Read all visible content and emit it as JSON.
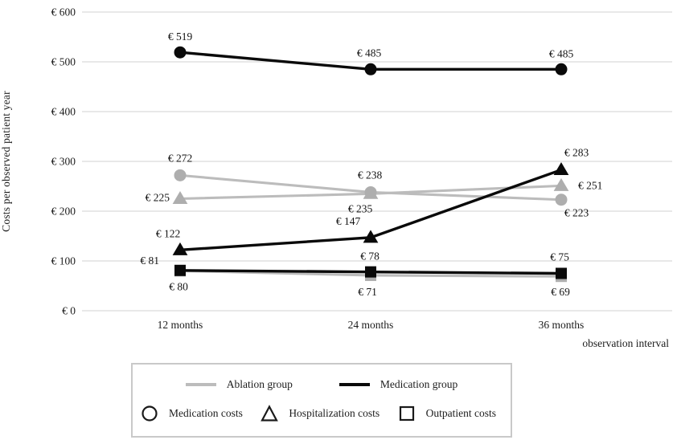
{
  "chart_data": {
    "type": "line",
    "title": "",
    "ylabel": "Costs per observed patient year",
    "xlabel": "observation interval",
    "categories": [
      "12 months",
      "24 months",
      "36 months"
    ],
    "ylim": [
      0,
      600
    ],
    "ytick_interval": 100,
    "ytick_labels": [
      "€ 0",
      "€ 100",
      "€ 200",
      "€ 300",
      "€ 400",
      "€ 500",
      "€ 600"
    ],
    "grid": "horizontal-only",
    "gridline_color": "#d9d9d9",
    "series": [
      {
        "name": "ablation-medication-costs",
        "group": "Ablation group",
        "cost_type": "Medication costs",
        "marker": "circle",
        "color": "#bcbcbc",
        "marker_color": "#aeaeae",
        "values": [
          272,
          238,
          223
        ],
        "point_labels": [
          {
            "text": "€ 272",
            "anchor": "middle",
            "dx": 0,
            "dy": -17
          },
          {
            "text": "€ 238",
            "anchor": "middle",
            "dx": -1,
            "dy": -17
          },
          {
            "text": "€ 223",
            "anchor": "middle",
            "dx": 19,
            "dy": 21
          }
        ]
      },
      {
        "name": "ablation-hospitalization-costs",
        "group": "Ablation group",
        "cost_type": "Hospitalization costs",
        "marker": "triangle",
        "color": "#bcbcbc",
        "marker_color": "#aeaeae",
        "values": [
          225,
          235,
          251
        ],
        "point_labels": [
          {
            "text": "€ 225",
            "anchor": "end",
            "dx": -13,
            "dy": 3
          },
          {
            "text": "€ 235",
            "anchor": "middle",
            "dx": -13,
            "dy": 23
          },
          {
            "text": "€ 251",
            "anchor": "start",
            "dx": 21,
            "dy": 4
          }
        ]
      },
      {
        "name": "ablation-outpatient-costs",
        "group": "Ablation group",
        "cost_type": "Outpatient costs",
        "marker": "square",
        "color": "#bcbcbc",
        "marker_color": "#aeaeae",
        "values": [
          80,
          71,
          69
        ],
        "point_labels": [
          {
            "text": "€ 80",
            "anchor": "middle",
            "dx": -2,
            "dy": 24
          },
          {
            "text": "€ 71",
            "anchor": "middle",
            "dx": -4,
            "dy": 25
          },
          {
            "text": "€ 69",
            "anchor": "middle",
            "dx": -1,
            "dy": 24
          }
        ]
      },
      {
        "name": "medication-medication-costs",
        "group": "Medication group",
        "cost_type": "Medication costs",
        "marker": "circle",
        "color": "#0a0a0a",
        "marker_color": "#0a0a0a",
        "values": [
          519,
          485,
          485
        ],
        "point_labels": [
          {
            "text": "€ 519",
            "anchor": "middle",
            "dx": 0,
            "dy": -15
          },
          {
            "text": "€ 485",
            "anchor": "middle",
            "dx": -2,
            "dy": -16
          },
          {
            "text": "€ 485",
            "anchor": "middle",
            "dx": 0,
            "dy": -15
          }
        ]
      },
      {
        "name": "medication-hospitalization-costs",
        "group": "Medication group",
        "cost_type": "Hospitalization costs",
        "marker": "triangle",
        "color": "#0a0a0a",
        "marker_color": "#0a0a0a",
        "values": [
          122,
          147,
          283
        ],
        "point_labels": [
          {
            "text": "€ 122",
            "anchor": "middle",
            "dx": -15,
            "dy": -16
          },
          {
            "text": "€ 147",
            "anchor": "middle",
            "dx": -28,
            "dy": -16
          },
          {
            "text": "€ 283",
            "anchor": "middle",
            "dx": 19,
            "dy": -17
          }
        ]
      },
      {
        "name": "medication-outpatient-costs",
        "group": "Medication group",
        "cost_type": "Outpatient costs",
        "marker": "square",
        "color": "#0a0a0a",
        "marker_color": "#0a0a0a",
        "values": [
          81,
          78,
          75
        ],
        "point_labels": [
          {
            "text": "€ 81",
            "anchor": "end",
            "dx": -26,
            "dy": -8
          },
          {
            "text": "€ 78",
            "anchor": "middle",
            "dx": -1,
            "dy": -15
          },
          {
            "text": "€ 75",
            "anchor": "middle",
            "dx": -2,
            "dy": -16
          }
        ]
      }
    ],
    "legend": {
      "position": "bottom",
      "groups": [
        {
          "label": "Ablation group",
          "color": "#bcbcbc"
        },
        {
          "label": "Medication group",
          "color": "#0a0a0a"
        }
      ],
      "cost_markers": [
        {
          "label": "Medication costs",
          "shape": "circle"
        },
        {
          "label": "Hospitalization costs",
          "shape": "triangle"
        },
        {
          "label": "Outpatient costs",
          "shape": "square"
        }
      ]
    }
  }
}
